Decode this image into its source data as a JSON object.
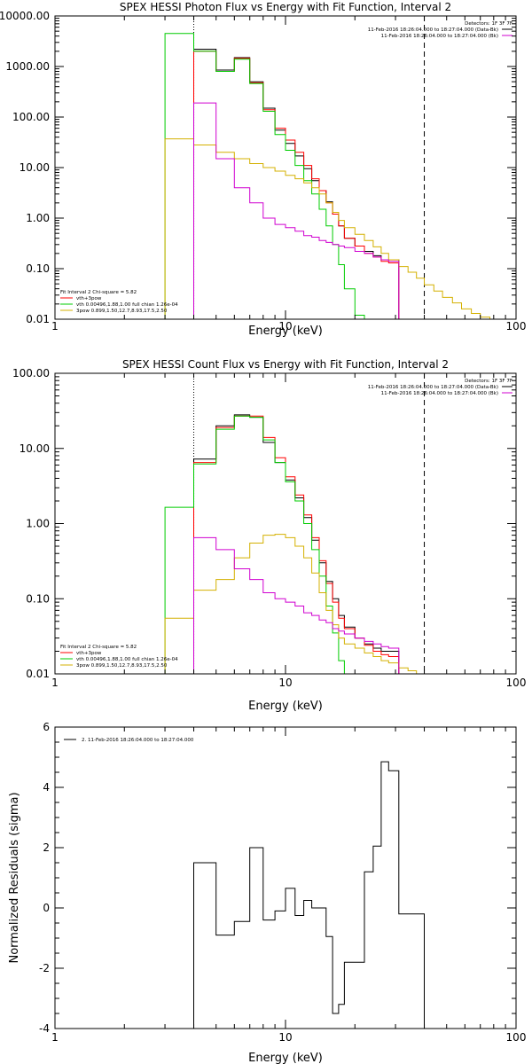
{
  "chart_data": [
    {
      "type": "line",
      "step": true,
      "title": "SPEX HESSI Photon Flux vs Energy with Fit Function, Interval 2",
      "xlabel": "Energy (keV)",
      "ylabel": "",
      "xscale": "log",
      "yscale": "log",
      "xlim": [
        1,
        100
      ],
      "ylim": [
        0.01,
        10000
      ],
      "x_ticks": [
        1,
        10,
        100
      ],
      "x_tick_labels": [
        "1",
        "10",
        "100"
      ],
      "y_ticks": [
        0.01,
        0.1,
        1,
        10,
        100,
        1000,
        10000
      ],
      "y_tick_labels": [
        "0.01",
        "0.10",
        "1.00",
        "10.00",
        "100.00",
        "1000.00",
        "10000.00"
      ],
      "vlines": [
        {
          "x": 4.0,
          "style": "dotted"
        },
        {
          "x": 40.0,
          "style": "dashed"
        }
      ],
      "legend_top_right": {
        "header": "Detectors: 1F 3F 7F",
        "entries": [
          {
            "label": "11-Feb-2016 18:26:04.000 to 18:27:04.000 (Data-Bk)",
            "color": "#000000"
          },
          {
            "label": "11-Feb-2016 18:26:04.000 to 18:27:04.000 (Bk)",
            "color": "#d000d0"
          }
        ]
      },
      "legend_bottom_left": {
        "header": "Fit Interval 2   Chi-square = 5.82",
        "entries": [
          {
            "label": "vth+3pow",
            "color": "#ff0000"
          },
          {
            "label": "vth 0.00496,1.88,1.00   full chian 1.26e-04",
            "color": "#00cc00"
          },
          {
            "label": "3pow 0.899,1.50,12.7,8.93,17.5,2.50",
            "color": "#d4b000"
          }
        ]
      },
      "bin_edges": [
        3.0,
        4.0,
        5.0,
        6.0,
        7.0,
        8.0,
        9.0,
        10.0,
        11.0,
        12.0,
        13.0,
        14.0,
        15.0,
        16.0,
        17.0,
        18.0,
        20.0,
        22.0,
        24.0,
        26.0,
        28.0,
        31.0,
        34.0,
        37.0,
        40.0,
        44.0,
        48.0,
        53.0,
        58.0,
        64.0,
        70.0,
        77.0,
        85.0
      ],
      "series": [
        {
          "color": "#000000",
          "values": [
            null,
            2200,
            850,
            1500,
            500,
            150,
            55,
            30,
            17,
            9.5,
            5.5,
            3.5,
            2.1,
            1.2,
            0.7,
            0.4,
            0.28,
            0.22,
            0.18,
            0.15,
            0.15,
            null,
            null,
            null,
            null,
            null,
            null,
            null,
            null,
            null,
            null,
            null
          ]
        },
        {
          "color": "#ff0000",
          "values": [
            null,
            2000,
            800,
            1450,
            480,
            140,
            60,
            35,
            20,
            11,
            6.0,
            3.5,
            2.0,
            1.2,
            0.7,
            0.4,
            0.28,
            0.2,
            0.17,
            0.14,
            0.13,
            null,
            null,
            null,
            null,
            null,
            null,
            null,
            null,
            null,
            null,
            null
          ]
        },
        {
          "color": "#00cc00",
          "values": [
            4500,
            2000,
            800,
            1400,
            460,
            130,
            45,
            22,
            11,
            5.5,
            3.0,
            1.5,
            0.7,
            0.3,
            0.12,
            0.04,
            0.012,
            null,
            null,
            null,
            null,
            null,
            null,
            null,
            null,
            null,
            null,
            null,
            null,
            null,
            null,
            null
          ]
        },
        {
          "color": "#d4b000",
          "values": [
            37,
            28,
            20,
            15,
            12,
            10,
            8.5,
            7.0,
            6.0,
            5.0,
            4.0,
            3.0,
            2.0,
            1.3,
            0.9,
            0.65,
            0.48,
            0.36,
            0.27,
            0.2,
            0.15,
            0.11,
            0.085,
            0.065,
            0.048,
            0.036,
            0.027,
            0.021,
            0.016,
            0.013,
            0.011,
            0.009
          ]
        },
        {
          "color": "#d000d0",
          "values": [
            null,
            190,
            15,
            4.0,
            2.0,
            1.0,
            0.75,
            0.65,
            0.55,
            0.45,
            0.42,
            0.36,
            0.33,
            0.3,
            0.28,
            0.26,
            0.22,
            0.2,
            0.17,
            0.15,
            0.14,
            null,
            null,
            null,
            null,
            null,
            null,
            null,
            null,
            null,
            null,
            null
          ]
        }
      ]
    },
    {
      "type": "line",
      "step": true,
      "title": "SPEX HESSI Count Flux vs Energy with Fit Function, Interval 2",
      "xlabel": "Energy (keV)",
      "ylabel": "",
      "xscale": "log",
      "yscale": "log",
      "xlim": [
        1,
        100
      ],
      "ylim": [
        0.01,
        100
      ],
      "x_ticks": [
        1,
        10,
        100
      ],
      "x_tick_labels": [
        "1",
        "10",
        "100"
      ],
      "y_ticks": [
        0.01,
        0.1,
        1,
        10,
        100
      ],
      "y_tick_labels": [
        "0.01",
        "0.10",
        "1.00",
        "10.00",
        "100.00"
      ],
      "vlines": [
        {
          "x": 4.0,
          "style": "dotted"
        },
        {
          "x": 40.0,
          "style": "dashed"
        }
      ],
      "legend_top_right": {
        "header": "Detectors: 1F 3F 7F",
        "entries": [
          {
            "label": "11-Feb-2016 18:26:04.000 to 18:27:04.000 (Data-Bk)",
            "color": "#000000"
          },
          {
            "label": "11-Feb-2016 18:26:04.000 to 18:27:04.000 (Bk)",
            "color": "#d000d0"
          }
        ]
      },
      "legend_bottom_left": {
        "header": "Fit Interval 2   Chi-square = 5.82",
        "entries": [
          {
            "label": "vth+3pow",
            "color": "#ff0000"
          },
          {
            "label": "vth 0.00496,1.88,1.00   full chian 1.26e-04",
            "color": "#00cc00"
          },
          {
            "label": "3pow 0.899,1.50,12.7,8.93,17.5,2.50",
            "color": "#d4b000"
          }
        ]
      },
      "bin_edges": [
        3.0,
        4.0,
        5.0,
        6.0,
        7.0,
        8.0,
        9.0,
        10.0,
        11.0,
        12.0,
        13.0,
        14.0,
        15.0,
        16.0,
        17.0,
        18.0,
        20.0,
        22.0,
        24.0,
        26.0,
        28.0,
        31.0,
        34.0,
        37.0,
        40.0,
        44.0
      ],
      "series": [
        {
          "color": "#000000",
          "values": [
            null,
            7.2,
            20,
            28,
            26,
            12,
            6.5,
            3.8,
            2.2,
            1.2,
            0.6,
            0.3,
            0.17,
            0.1,
            0.06,
            0.042,
            0.03,
            0.025,
            0.022,
            0.02,
            0.02,
            null,
            null,
            null,
            null
          ]
        },
        {
          "color": "#ff0000",
          "values": [
            null,
            6.5,
            19,
            27,
            27,
            14,
            7.5,
            4.2,
            2.4,
            1.3,
            0.65,
            0.32,
            0.16,
            0.09,
            0.055,
            0.04,
            0.03,
            0.024,
            0.02,
            0.018,
            0.017,
            null,
            null,
            null,
            null
          ]
        },
        {
          "color": "#00cc00",
          "values": [
            1.65,
            6.2,
            18,
            27,
            26,
            13,
            6.5,
            3.6,
            2.0,
            1.0,
            0.45,
            0.2,
            0.08,
            0.035,
            0.015,
            0.008,
            null,
            null,
            null,
            null,
            null,
            null,
            null,
            null,
            null
          ]
        },
        {
          "color": "#d4b000",
          "values": [
            0.055,
            0.13,
            0.18,
            0.35,
            0.55,
            0.7,
            0.72,
            0.65,
            0.5,
            0.35,
            0.22,
            0.12,
            0.07,
            0.045,
            0.03,
            0.025,
            0.022,
            0.019,
            0.017,
            0.015,
            0.014,
            0.012,
            0.011,
            0.01,
            0.01
          ]
        },
        {
          "color": "#d000d0",
          "values": [
            null,
            0.65,
            0.45,
            0.25,
            0.18,
            0.12,
            0.1,
            0.09,
            0.08,
            0.065,
            0.06,
            0.052,
            0.048,
            0.04,
            0.037,
            0.034,
            0.03,
            0.027,
            0.025,
            0.023,
            0.022,
            null,
            null,
            null,
            null
          ]
        }
      ]
    },
    {
      "type": "line",
      "step": true,
      "title": "",
      "xlabel": "Energy (keV)",
      "ylabel": "Normalized Residuals (sigma)",
      "xscale": "log",
      "yscale": "linear",
      "xlim": [
        1,
        100
      ],
      "ylim": [
        -4,
        6
      ],
      "x_ticks": [
        1,
        10,
        100
      ],
      "x_tick_labels": [
        "1",
        "10",
        "100"
      ],
      "y_ticks": [
        -4,
        -2,
        0,
        2,
        4,
        6
      ],
      "y_tick_labels": [
        "-4",
        "-2",
        "0",
        "2",
        "4",
        "6"
      ],
      "legend_top_left": {
        "entries": [
          {
            "label": "2. 11-Feb-2016 18:26:04.000 to 18:27:04.000",
            "color": "#000000"
          }
        ]
      },
      "bin_edges": [
        4.0,
        5.0,
        6.0,
        7.0,
        8.0,
        9.0,
        10.0,
        11.0,
        12.0,
        13.0,
        14.0,
        15.0,
        16.0,
        17.0,
        18.0,
        20.0,
        22.0,
        24.0,
        26.0,
        28.0,
        31.0,
        34.0,
        37.0,
        40.0
      ],
      "series": [
        {
          "color": "#000000",
          "values": [
            1.5,
            -0.9,
            -0.45,
            2.0,
            -0.4,
            -0.1,
            0.65,
            -0.25,
            0.25,
            0.0,
            0.0,
            -0.95,
            -3.5,
            -3.2,
            -1.8,
            -1.8,
            1.2,
            2.05,
            4.85,
            4.55,
            -0.2,
            -0.2,
            -0.2
          ]
        }
      ]
    }
  ]
}
